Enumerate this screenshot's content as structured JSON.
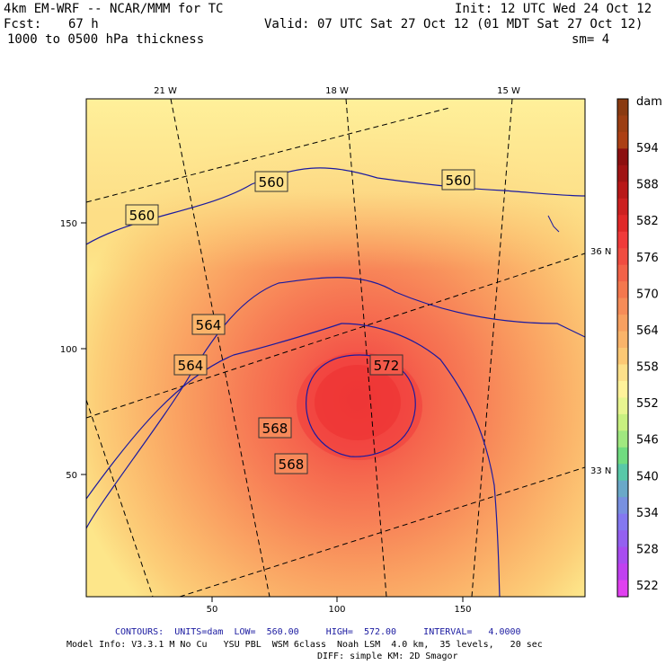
{
  "header": {
    "model_title": "4km EM-WRF -- NCAR/MMM for TC",
    "init": "Init: 12 UTC Wed 24 Oct 12",
    "fcst_label": "Fcst:",
    "fcst_value": "67 h",
    "valid": "Valid: 07 UTC Sat 27 Oct 12 (01 MDT Sat 27 Oct 12)",
    "field": "1000 to 0500 hPa thickness",
    "smoothing": "sm= 4"
  },
  "map": {
    "grid_x_ticks": [
      "50",
      "100",
      "150"
    ],
    "grid_y_ticks": [
      "150",
      "100",
      "50"
    ],
    "longitude_labels": [
      "21 W",
      "18 W",
      "15 W"
    ],
    "latitude_labels": [
      "36 N",
      "33 N"
    ],
    "contour_labels": [
      "560",
      "560",
      "560",
      "564",
      "564",
      "568",
      "568",
      "572"
    ]
  },
  "colorbar": {
    "units": "dam",
    "levels": [
      "594",
      "588",
      "582",
      "576",
      "570",
      "564",
      "558",
      "552",
      "546",
      "540",
      "534",
      "528",
      "522"
    ],
    "colors": [
      "#8a3a10",
      "#9c3e12",
      "#ac4014",
      "#8c1010",
      "#a01414",
      "#b81818",
      "#cc2020",
      "#e02828",
      "#f03a3a",
      "#f04c40",
      "#f26248",
      "#f4784e",
      "#f68c58",
      "#f8a060",
      "#fab46a",
      "#fcc874",
      "#fde08a",
      "#fff29a",
      "#e8f590",
      "#c8f080",
      "#a0e880",
      "#70dc80",
      "#58c8a8",
      "#6aa8c8",
      "#7890e0",
      "#8478f0",
      "#9460f0",
      "#a84cf0",
      "#c040f0",
      "#e040f0"
    ]
  },
  "footer": {
    "contours_line": "CONTOURS:  UNITS=dam  LOW=  560.00     HIGH=  572.00     INTERVAL=   4.0000",
    "model_info_line": "Model Info: V3.3.1 M No Cu   YSU PBL  WSM 6class  Noah LSM  4.0 km,  35 levels,   20 sec",
    "model_info_line2": "DIFF: simple KM: 2D Smagor"
  }
}
